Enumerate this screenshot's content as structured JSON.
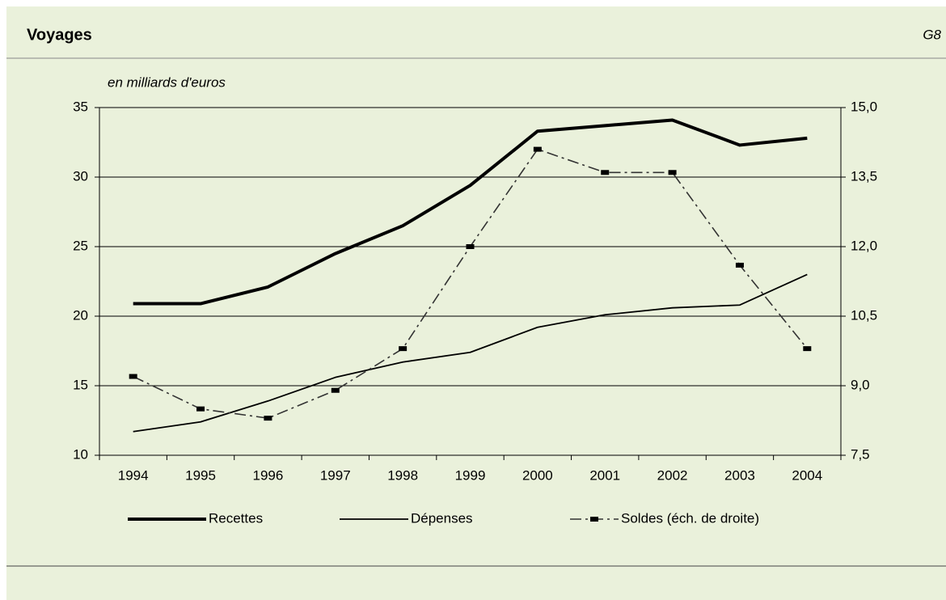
{
  "chart_data": {
    "type": "line",
    "title": "Voyages",
    "figure_label": "G8",
    "subtitle": "en milliards d'euros",
    "categories": [
      "1994",
      "1995",
      "1996",
      "1997",
      "1998",
      "1999",
      "2000",
      "2001",
      "2002",
      "2003",
      "2004"
    ],
    "series": [
      {
        "name": "Recettes",
        "color": "#000000",
        "values": [
          20.9,
          20.9,
          22.1,
          24.5,
          26.5,
          29.4,
          33.3,
          33.7,
          34.1,
          32.3,
          32.8
        ]
      },
      {
        "name": "Dépenses",
        "color": "#000000",
        "values": [
          11.7,
          12.4,
          13.9,
          15.6,
          16.7,
          17.4,
          19.2,
          20.1,
          20.6,
          20.8,
          23.0
        ]
      },
      {
        "name": "Soldes (éch. de droite)",
        "color": "#333333",
        "axis": "y2",
        "values": [
          9.2,
          8.5,
          8.3,
          8.9,
          9.8,
          12.0,
          14.1,
          13.6,
          13.6,
          11.6,
          9.8
        ]
      }
    ],
    "ylim": [
      10,
      35
    ],
    "yticks": [
      10,
      15,
      20,
      25,
      30,
      35
    ],
    "y2lim": [
      7.5,
      15
    ],
    "y2ticks": [
      {
        "value": 7.5,
        "label": "7,5"
      },
      {
        "value": 9,
        "label": "9,0"
      },
      {
        "value": 10.5,
        "label": "10,5"
      },
      {
        "value": 12,
        "label": "12,0"
      },
      {
        "value": 13.5,
        "label": "13,5"
      },
      {
        "value": 15,
        "label": "15,0"
      }
    ],
    "grid": true,
    "legend": "bottom"
  }
}
